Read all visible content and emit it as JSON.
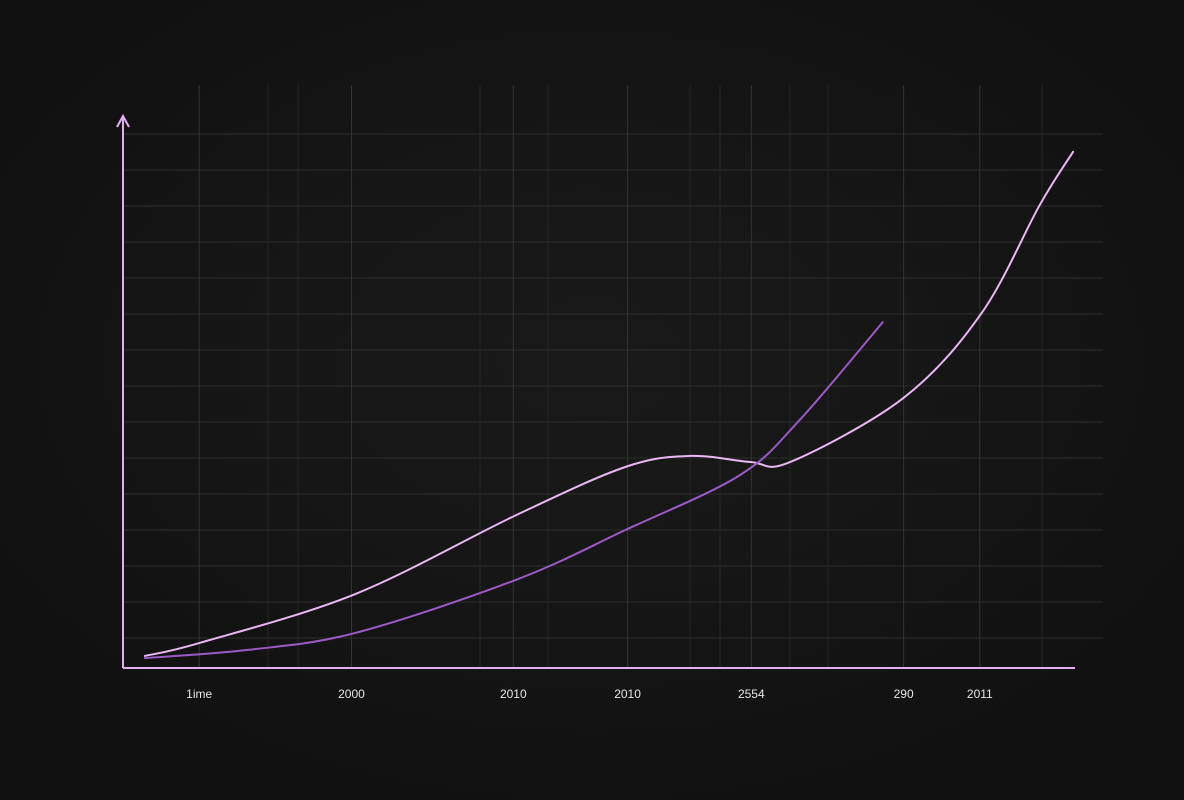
{
  "chart_data": {
    "type": "line",
    "xlim": [
      0,
      100
    ],
    "ylim": [
      0,
      100
    ],
    "xticks": [
      {
        "value": 8,
        "label": "1ime"
      },
      {
        "value": 24,
        "label": "2000"
      },
      {
        "value": 41,
        "label": "2010"
      },
      {
        "value": 53,
        "label": "2010"
      },
      {
        "value": 66,
        "label": "2554"
      },
      {
        "value": 82,
        "label": "290"
      },
      {
        "value": 90,
        "label": "2011"
      }
    ],
    "grid": true,
    "series": [
      {
        "color": "#e9b8f2",
        "x": [
          2.3,
          8.1,
          24.4,
          41.3,
          52.8,
          59.6,
          65.9,
          70.1,
          82.0,
          90.2,
          96.3,
          99.8
        ],
        "values": [
          2.2,
          4.6,
          13.5,
          27.9,
          36.7,
          38.7,
          37.6,
          37.6,
          49.3,
          64.8,
          84.5,
          94.2
        ]
      },
      {
        "color": "#9a5cc4",
        "x": [
          2.3,
          13.1,
          24.4,
          41.3,
          52.8,
          64.8,
          71.1,
          79.8
        ],
        "values": [
          1.8,
          3.3,
          6.4,
          16.1,
          25.2,
          35.2,
          45.3,
          63.1
        ]
      }
    ]
  }
}
